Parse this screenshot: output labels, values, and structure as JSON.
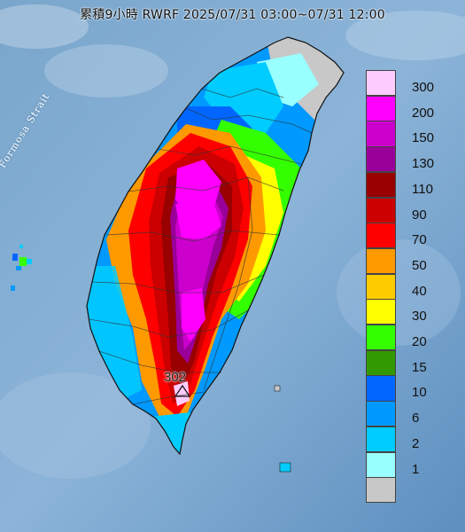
{
  "title": "累積9小時 RWRF 2025/07/31 03:00~07/31 12:00",
  "strait_label": "Formosa Strait",
  "peak_label": "302",
  "legend": [
    {
      "label": "300",
      "color": "#ffccff"
    },
    {
      "label": "200",
      "color": "#ff00ff"
    },
    {
      "label": "150",
      "color": "#cc00cc"
    },
    {
      "label": "130",
      "color": "#990099"
    },
    {
      "label": "110",
      "color": "#990000"
    },
    {
      "label": "90",
      "color": "#cc0000"
    },
    {
      "label": "70",
      "color": "#ff0000"
    },
    {
      "label": "50",
      "color": "#ff9900"
    },
    {
      "label": "40",
      "color": "#ffcc00"
    },
    {
      "label": "30",
      "color": "#ffff00"
    },
    {
      "label": "20",
      "color": "#33ff00"
    },
    {
      "label": "15",
      "color": "#339900"
    },
    {
      "label": "10",
      "color": "#0066ff"
    },
    {
      "label": "6",
      "color": "#0099ff"
    },
    {
      "label": "2",
      "color": "#00ccff"
    },
    {
      "label": "1",
      "color": "#99ffff"
    },
    {
      "label": "",
      "color": "#c8c8c8"
    }
  ]
}
